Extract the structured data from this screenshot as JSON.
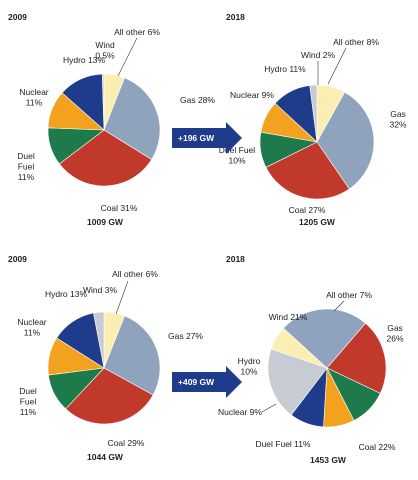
{
  "colors": {
    "Coal": "#c0392b",
    "Gas": "#8fa3bc",
    "Nuclear": "#f3a21f",
    "Hydro": "#1f3b8c",
    "Duel Fuel": "#1d7a4a",
    "Wind": "#c7cbd3",
    "All other": "#fbeeb2",
    "arrow": "#1f3b8c"
  },
  "chart_data": [
    {
      "type": "pie",
      "title": "2009",
      "total_label": "1009 GW",
      "slices": [
        {
          "name": "Coal",
          "value": 31,
          "label_lines": [
            "Coal 31%"
          ]
        },
        {
          "name": "Gas",
          "value": 28,
          "label_lines": [
            "Gas 28%"
          ]
        },
        {
          "name": "All other",
          "value": 6,
          "label_lines": [
            "All other 6%"
          ]
        },
        {
          "name": "Wind",
          "value": 0.5,
          "label_lines": [
            "Wind",
            "0.5%"
          ]
        },
        {
          "name": "Hydro",
          "value": 13,
          "label_lines": [
            "Hydro 13%"
          ]
        },
        {
          "name": "Nuclear",
          "value": 11,
          "label_lines": [
            "Nuclear",
            "11%"
          ]
        },
        {
          "name": "Duel Fuel",
          "value": 11,
          "label_lines": [
            "Duel",
            "Fuel",
            "11%"
          ]
        }
      ]
    },
    {
      "type": "pie",
      "title": "2018",
      "total_label": "1205 GW",
      "slices": [
        {
          "name": "Coal",
          "value": 27,
          "label_lines": [
            "Coal 27%"
          ]
        },
        {
          "name": "Gas",
          "value": 32,
          "label_lines": [
            "Gas",
            "32%"
          ]
        },
        {
          "name": "All other",
          "value": 8,
          "label_lines": [
            "All other 8%"
          ]
        },
        {
          "name": "Wind",
          "value": 2,
          "label_lines": [
            "Wind 2%"
          ]
        },
        {
          "name": "Hydro",
          "value": 11,
          "label_lines": [
            "Hydro 11%"
          ]
        },
        {
          "name": "Nuclear",
          "value": 9,
          "label_lines": [
            "Nuclear 9%"
          ]
        },
        {
          "name": "Duel Fuel",
          "value": 10,
          "label_lines": [
            "Duel Fuel",
            "10%"
          ]
        }
      ]
    },
    {
      "type": "pie",
      "title": "2009",
      "total_label": "1044 GW",
      "slices": [
        {
          "name": "Coal",
          "value": 29,
          "label_lines": [
            "Coal 29%"
          ]
        },
        {
          "name": "Gas",
          "value": 27,
          "label_lines": [
            "Gas 27%"
          ]
        },
        {
          "name": "All other",
          "value": 6,
          "label_lines": [
            "All other 6%"
          ]
        },
        {
          "name": "Wind",
          "value": 3,
          "label_lines": [
            "Wind 3%"
          ]
        },
        {
          "name": "Hydro",
          "value": 13,
          "label_lines": [
            "Hydro 13%"
          ]
        },
        {
          "name": "Nuclear",
          "value": 11,
          "label_lines": [
            "Nuclear",
            "11%"
          ]
        },
        {
          "name": "Duel Fuel",
          "value": 11,
          "label_lines": [
            "Duel",
            "Fuel",
            "11%"
          ]
        }
      ]
    },
    {
      "type": "pie",
      "title": "2018",
      "total_label": "1453 GW",
      "slices": [
        {
          "name": "Coal",
          "value": 22,
          "label_lines": [
            "Coal 22%"
          ]
        },
        {
          "name": "Gas",
          "value": 26,
          "label_lines": [
            "Gas",
            "26%"
          ]
        },
        {
          "name": "All other",
          "value": 7,
          "label_lines": [
            "All other 7%"
          ]
        },
        {
          "name": "Wind",
          "value": 21,
          "label_lines": [
            "Wind 21%"
          ]
        },
        {
          "name": "Hydro",
          "value": 10,
          "label_lines": [
            "Hydro",
            "10%"
          ]
        },
        {
          "name": "Nuclear",
          "value": 9,
          "label_lines": [
            "Nuclear 9%"
          ]
        },
        {
          "name": "Duel Fuel",
          "value": 11,
          "label_lines": [
            "Duel Fuel 11%"
          ]
        }
      ]
    }
  ],
  "arrows": [
    "+196 GW",
    "+409 GW"
  ]
}
